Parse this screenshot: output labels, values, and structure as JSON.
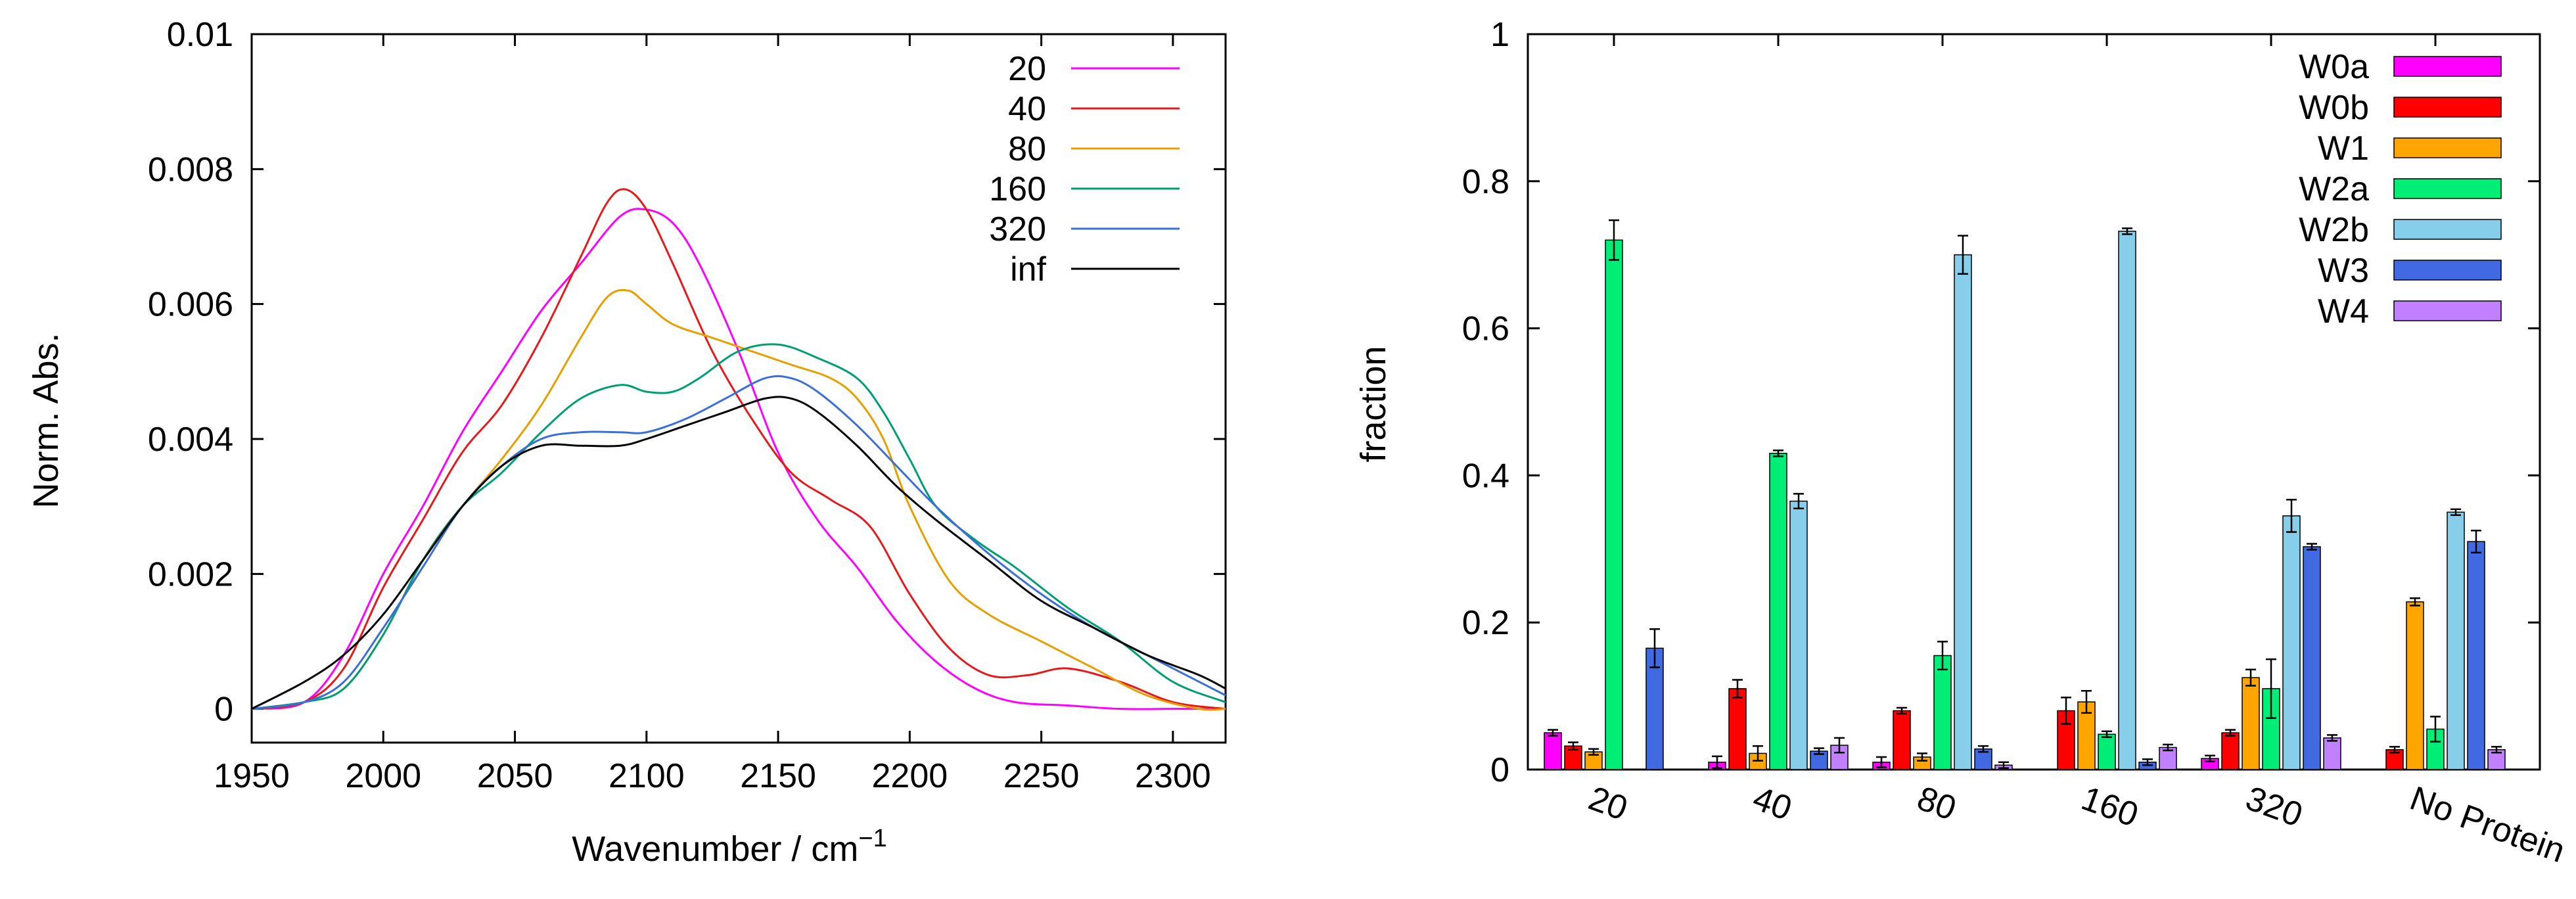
{
  "chart_data": [
    {
      "type": "line",
      "title": "",
      "xlabel": "Wavenumber / cm",
      "xlabel_superscript": "−1",
      "ylabel": "Norm. Abs.",
      "xlim": [
        1950,
        2320
      ],
      "ylim": [
        -0.0005,
        0.01
      ],
      "xticks": [
        1950,
        2000,
        2050,
        2100,
        2150,
        2200,
        2250,
        2300
      ],
      "yticks": [
        0,
        0.002,
        0.004,
        0.006,
        0.008,
        0.01
      ],
      "ytick_labels": [
        "0",
        "0.002",
        "0.004",
        "0.006",
        "0.008",
        "0.01"
      ],
      "legend_position": "top-right",
      "series": [
        {
          "name": "20",
          "color": "#ff00ff",
          "x": [
            1950,
            1970,
            1985,
            2000,
            2015,
            2030,
            2045,
            2060,
            2075,
            2090,
            2100,
            2110,
            2120,
            2135,
            2150,
            2165,
            2180,
            2195,
            2210,
            2225,
            2240,
            2260,
            2280,
            2300,
            2320
          ],
          "y": [
            0,
            0.0001,
            0.0008,
            0.002,
            0.003,
            0.0041,
            0.005,
            0.0059,
            0.0066,
            0.0073,
            0.0074,
            0.0072,
            0.0066,
            0.0053,
            0.0038,
            0.0028,
            0.0021,
            0.0013,
            0.0007,
            0.0003,
            0.0001,
            5e-05,
            0,
            0,
            0
          ]
        },
        {
          "name": "40",
          "color": "#e41a1c",
          "x": [
            1950,
            1970,
            1985,
            2000,
            2015,
            2030,
            2045,
            2060,
            2075,
            2085,
            2092,
            2100,
            2110,
            2125,
            2140,
            2155,
            2170,
            2185,
            2200,
            2215,
            2230,
            2245,
            2260,
            2280,
            2300,
            2320
          ],
          "y": [
            0,
            0.0001,
            0.0006,
            0.0018,
            0.0028,
            0.0038,
            0.0045,
            0.0055,
            0.0067,
            0.0075,
            0.0077,
            0.0074,
            0.0066,
            0.0053,
            0.0043,
            0.0035,
            0.0031,
            0.0027,
            0.0017,
            0.0009,
            0.0005,
            0.0005,
            0.0006,
            0.0004,
            0.0001,
            0
          ]
        },
        {
          "name": "80",
          "color": "#e69f00",
          "x": [
            1950,
            1970,
            1985,
            2000,
            2015,
            2030,
            2045,
            2060,
            2075,
            2085,
            2093,
            2100,
            2110,
            2125,
            2140,
            2155,
            2170,
            2180,
            2190,
            2200,
            2215,
            2230,
            2250,
            2270,
            2290,
            2310,
            2320
          ],
          "y": [
            0,
            0.0001,
            0.0003,
            0.0011,
            0.0022,
            0.003,
            0.0037,
            0.0045,
            0.0055,
            0.0061,
            0.0062,
            0.006,
            0.0057,
            0.0055,
            0.0053,
            0.0051,
            0.0049,
            0.0046,
            0.004,
            0.003,
            0.0019,
            0.0014,
            0.001,
            0.0006,
            0.0002,
            0,
            0
          ]
        },
        {
          "name": "160",
          "color": "#009e73",
          "x": [
            1950,
            1970,
            1985,
            2000,
            2015,
            2030,
            2045,
            2060,
            2075,
            2090,
            2100,
            2110,
            2120,
            2135,
            2150,
            2165,
            2180,
            2190,
            2200,
            2210,
            2225,
            2240,
            2260,
            2280,
            2300,
            2320
          ],
          "y": [
            0,
            0.0001,
            0.0003,
            0.0011,
            0.0022,
            0.003,
            0.0035,
            0.0041,
            0.0046,
            0.0048,
            0.0047,
            0.0047,
            0.0049,
            0.0053,
            0.0054,
            0.0052,
            0.0049,
            0.0044,
            0.0037,
            0.003,
            0.0025,
            0.0021,
            0.0015,
            0.001,
            0.0004,
            0.0001
          ]
        },
        {
          "name": "320",
          "color": "#3a6fd8",
          "x": [
            1950,
            1970,
            1985,
            2000,
            2015,
            2030,
            2045,
            2060,
            2075,
            2090,
            2100,
            2115,
            2130,
            2145,
            2155,
            2165,
            2180,
            2195,
            2210,
            2230,
            2250,
            2270,
            2290,
            2310,
            2320
          ],
          "y": [
            0,
            0.0001,
            0.0004,
            0.0012,
            0.0021,
            0.003,
            0.0036,
            0.004,
            0.0041,
            0.0041,
            0.0041,
            0.0043,
            0.0046,
            0.0049,
            0.0049,
            0.0047,
            0.0042,
            0.0036,
            0.003,
            0.0023,
            0.0017,
            0.0012,
            0.0008,
            0.0004,
            0.0002
          ]
        },
        {
          "name": "inf",
          "color": "#000000",
          "x": [
            1950,
            1970,
            1985,
            2000,
            2015,
            2030,
            2045,
            2060,
            2075,
            2090,
            2100,
            2115,
            2130,
            2145,
            2155,
            2165,
            2180,
            2195,
            2210,
            2230,
            2250,
            2270,
            2290,
            2310,
            2320
          ],
          "y": [
            0,
            0.0004,
            0.0008,
            0.0014,
            0.0022,
            0.003,
            0.0036,
            0.0039,
            0.0039,
            0.0039,
            0.004,
            0.0042,
            0.0044,
            0.0046,
            0.0046,
            0.0044,
            0.0039,
            0.0033,
            0.0028,
            0.0022,
            0.0016,
            0.0012,
            0.0008,
            0.0005,
            0.0003
          ]
        }
      ]
    },
    {
      "type": "bar",
      "title": "",
      "xlabel": "",
      "ylabel": "fraction",
      "ylim": [
        0,
        1
      ],
      "yticks": [
        0,
        0.2,
        0.4,
        0.6,
        0.8,
        1
      ],
      "ytick_labels": [
        "0",
        "0.2",
        "0.4",
        "0.6",
        "0.8",
        "1"
      ],
      "categories": [
        "20",
        "40",
        "80",
        "160",
        "320",
        "No Protein"
      ],
      "legend_position": "top-right",
      "series": [
        {
          "name": "W0a",
          "color": "#ff00ff",
          "values": [
            0.05,
            0.01,
            0.01,
            0.0,
            0.015,
            0.0
          ],
          "errors": [
            0.004,
            0.008,
            0.007,
            0.0,
            0.004,
            0.0
          ]
        },
        {
          "name": "W0b",
          "color": "#ff0000",
          "values": [
            0.032,
            0.11,
            0.08,
            0.08,
            0.05,
            0.027
          ],
          "errors": [
            0.005,
            0.012,
            0.004,
            0.018,
            0.004,
            0.004
          ]
        },
        {
          "name": "W1",
          "color": "#ffa500",
          "values": [
            0.024,
            0.022,
            0.017,
            0.092,
            0.125,
            0.228
          ],
          "errors": [
            0.004,
            0.01,
            0.005,
            0.015,
            0.011,
            0.005
          ]
        },
        {
          "name": "W2a",
          "color": "#00ee76",
          "values": [
            0.72,
            0.43,
            0.155,
            0.048,
            0.11,
            0.055
          ],
          "errors": [
            0.027,
            0.004,
            0.019,
            0.004,
            0.04,
            0.017
          ]
        },
        {
          "name": "W2b",
          "color": "#87ceeb",
          "values": [
            0.0,
            0.365,
            0.7,
            0.732,
            0.345,
            0.35
          ],
          "errors": [
            0.0,
            0.01,
            0.026,
            0.004,
            0.022,
            0.004
          ]
        },
        {
          "name": "W3",
          "color": "#4169e1",
          "values": [
            0.165,
            0.025,
            0.028,
            0.01,
            0.303,
            0.31
          ],
          "errors": [
            0.026,
            0.004,
            0.004,
            0.004,
            0.004,
            0.015
          ]
        },
        {
          "name": "W4",
          "color": "#c080ff",
          "values": [
            0.0,
            0.033,
            0.006,
            0.03,
            0.043,
            0.027
          ],
          "errors": [
            0.0,
            0.01,
            0.004,
            0.004,
            0.004,
            0.004
          ]
        }
      ]
    }
  ]
}
